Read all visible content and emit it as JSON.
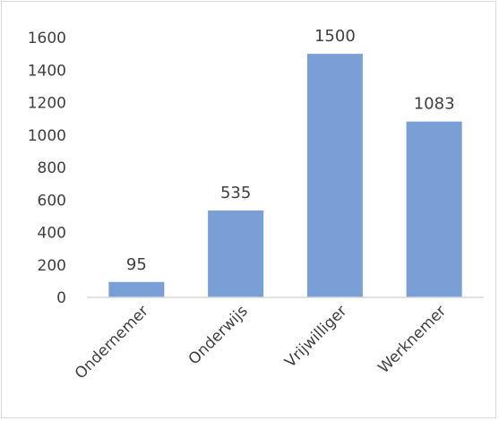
{
  "chart_data": {
    "type": "bar",
    "categories": [
      "Ondernemer",
      "Onderwijs",
      "Vrijwilliger",
      "Werknemer"
    ],
    "values": [
      95,
      535,
      1500,
      1083
    ],
    "data_labels": [
      "95",
      "535",
      "1500",
      "1083"
    ],
    "yticks": [
      "0",
      "200",
      "400",
      "600",
      "800",
      "1000",
      "1200",
      "1400",
      "1600"
    ],
    "ylim": [
      0,
      1600
    ],
    "grid": false,
    "legend": "none",
    "bar_color": "#7a9ed6",
    "axis_color": "#d9d9d9",
    "text_color": "#404040"
  }
}
